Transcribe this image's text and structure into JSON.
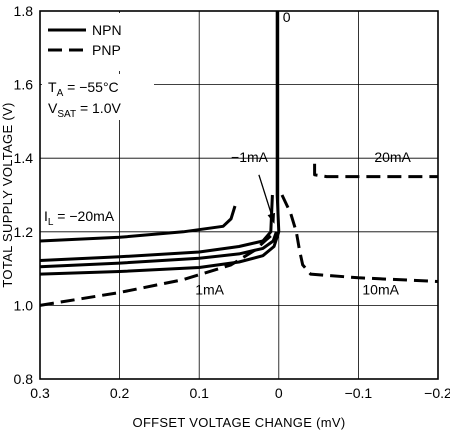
{
  "chart_data": {
    "type": "line",
    "xlabel": "OFFSET VOLTAGE CHANGE (mV)",
    "ylabel": "TOTAL SUPPLY VOLTAGE (V)",
    "xlim": [
      0.3,
      -0.2
    ],
    "ylim": [
      0.8,
      1.8
    ],
    "x_reversed": true,
    "grid": true,
    "x_ticks": [
      0.3,
      0.2,
      0.1,
      0,
      -0.1,
      -0.2
    ],
    "x_tick_labels": [
      "0.3",
      "0.2",
      "0.1",
      "0",
      "−0.1",
      "−0.2"
    ],
    "y_ticks": [
      0.8,
      1.0,
      1.2,
      1.4,
      1.6,
      1.8
    ],
    "y_tick_labels": [
      "0.8",
      "1.0",
      "1.2",
      "1.4",
      "1.6",
      "1.8"
    ],
    "legend": {
      "position": "top-left",
      "entries": [
        {
          "label": "NPN",
          "style": "solid"
        },
        {
          "label": "PNP",
          "style": "dashed"
        }
      ]
    },
    "conditions": {
      "ta": {
        "sym": "T",
        "sub": "A",
        "rest": " = −55°C"
      },
      "vsat": {
        "sym": "V",
        "sub": "SAT",
        "rest": " = 1.0V"
      }
    },
    "series": [
      {
        "style": "solid",
        "label": "0",
        "points": [
          [
            0.002,
            1.8
          ],
          [
            0.002,
            1.5
          ],
          [
            0.002,
            1.3
          ],
          [
            0.0,
            1.2
          ]
        ]
      },
      {
        "style": "solid",
        "points": [
          [
            0.3,
            1.175
          ],
          [
            0.2,
            1.185
          ],
          [
            0.12,
            1.2
          ],
          [
            0.07,
            1.215
          ],
          [
            0.06,
            1.235
          ],
          [
            0.055,
            1.27
          ]
        ]
      },
      {
        "style": "solid",
        "points": [
          [
            0.3,
            1.122
          ],
          [
            0.2,
            1.132
          ],
          [
            0.1,
            1.145
          ],
          [
            0.05,
            1.16
          ],
          [
            0.02,
            1.175
          ],
          [
            0.01,
            1.2
          ],
          [
            0.008,
            1.3
          ]
        ]
      },
      {
        "style": "solid",
        "points": [
          [
            0.3,
            1.105
          ],
          [
            0.2,
            1.115
          ],
          [
            0.1,
            1.128
          ],
          [
            0.05,
            1.14
          ],
          [
            0.02,
            1.155
          ],
          [
            0.007,
            1.175
          ],
          [
            0.003,
            1.2
          ]
        ]
      },
      {
        "style": "solid",
        "points": [
          [
            0.3,
            1.085
          ],
          [
            0.2,
            1.092
          ],
          [
            0.1,
            1.103
          ],
          [
            0.05,
            1.118
          ],
          [
            0.02,
            1.135
          ],
          [
            0.006,
            1.16
          ],
          [
            0.0,
            1.2
          ]
        ]
      },
      {
        "style": "dashed",
        "points": [
          [
            0.3,
            1.0
          ],
          [
            0.2,
            1.035
          ],
          [
            0.12,
            1.07
          ],
          [
            0.06,
            1.11
          ],
          [
            0.03,
            1.15
          ],
          [
            0.015,
            1.18
          ],
          [
            0.004,
            1.2
          ]
        ]
      },
      {
        "style": "dashed",
        "points": [
          [
            -0.004,
            1.3
          ],
          [
            -0.015,
            1.25
          ],
          [
            -0.022,
            1.2
          ],
          [
            -0.026,
            1.15
          ],
          [
            -0.03,
            1.11
          ],
          [
            -0.04,
            1.085
          ],
          [
            -0.1,
            1.075
          ],
          [
            -0.2,
            1.065
          ]
        ]
      },
      {
        "style": "dashed",
        "points": [
          [
            -0.045,
            1.385
          ],
          [
            -0.045,
            1.355
          ],
          [
            -0.06,
            1.35
          ],
          [
            -0.2,
            1.35
          ]
        ]
      }
    ],
    "annotations": [
      {
        "text": "0",
        "x": -0.005,
        "y": 1.77
      },
      {
        "text": "−1mA",
        "x": 0.06,
        "y": 1.39
      },
      {
        "text": "20mA",
        "x": -0.12,
        "y": 1.39
      },
      {
        "text": "1mA",
        "x": 0.105,
        "y": 1.03
      },
      {
        "text": "10mA",
        "x": -0.105,
        "y": 1.03
      }
    ],
    "il_label": {
      "sym": "I",
      "sub": "L",
      "rest": " = −20mA",
      "x": 0.295,
      "y": 1.23
    },
    "arrows": [
      {
        "from": [
          0.025,
          1.355
        ],
        "to": [
          0.006,
          1.225
        ]
      }
    ]
  }
}
